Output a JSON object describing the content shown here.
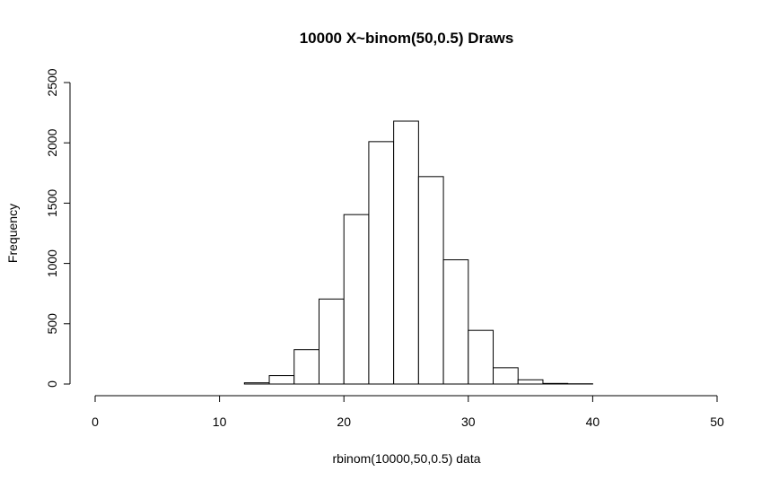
{
  "chart_data": {
    "type": "bar",
    "subtype": "histogram",
    "title": "10000 X~binom(50,0.5) Draws",
    "xlabel": "rbinom(10000,50,0.5) data",
    "ylabel": "Frequency",
    "xlim": [
      0,
      50
    ],
    "ylim": [
      0,
      2500
    ],
    "x_ticks": [
      0,
      10,
      20,
      30,
      40,
      50
    ],
    "y_ticks": [
      0,
      500,
      1000,
      1500,
      2000,
      2500
    ],
    "bin_edges": [
      12,
      14,
      16,
      18,
      20,
      22,
      24,
      26,
      28,
      30,
      32,
      34,
      36,
      38,
      40
    ],
    "values": [
      10,
      70,
      285,
      705,
      1405,
      2010,
      2180,
      1720,
      1030,
      445,
      135,
      35,
      5,
      2
    ],
    "grid": false,
    "legend": "none",
    "colors": {
      "bar_fill": "#ffffff",
      "bar_stroke": "#000000"
    }
  }
}
